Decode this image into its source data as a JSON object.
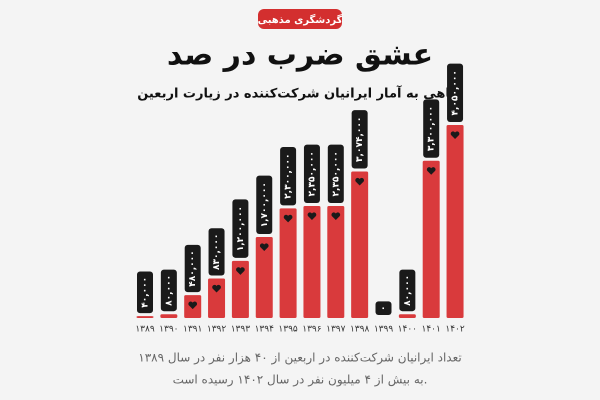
{
  "chart_data": {
    "type": "bar",
    "badge": "گردشگری مذهبی",
    "title": "عشق ضرب در صد",
    "subtitle": "نگاهی به آمار ایرانیان شرکت‌کننده در زیارت اربعین",
    "categories": [
      "۱۳۸۹",
      "۱۳۹۰",
      "۱۳۹۱",
      "۱۳۹۲",
      "۱۳۹۳",
      "۱۳۹۴",
      "۱۳۹۵",
      "۱۳۹۶",
      "۱۳۹۷",
      "۱۳۹۸",
      "۱۳۹۹",
      "۱۴۰۰",
      "۱۴۰۱",
      "۱۴۰۲"
    ],
    "values": [
      40000,
      80000,
      480000,
      830000,
      1200000,
      1700000,
      2300000,
      2350000,
      2350000,
      3074000,
      0,
      80000,
      3300000,
      4050000
    ],
    "value_labels": [
      "۴۰,۰۰۰",
      "۸۰,۰۰۰",
      "۴۸۰,۰۰۰",
      "۸۳۰,۰۰۰",
      "۱,۲۰۰,۰۰۰",
      "۱,۷۰۰,۰۰۰",
      "۲,۳۰۰,۰۰۰",
      "۲,۳۵۰,۰۰۰",
      "۲,۳۵۰,۰۰۰",
      "۳,۰۷۴,۰۰۰",
      "۰",
      "۸۰,۰۰۰",
      "۳,۳۰۰,۰۰۰",
      "۴,۰۵۰,۰۰۰"
    ],
    "color": "#d93a3c",
    "caption": [
      "تعداد ایرانیان شرکت‌کننده در اربعین از ۴۰ هزار نفر در سال ۱۳۸۹",
      "به بیش از ۴ میلیون نفر در سال ۱۴۰۲ رسیده است."
    ]
  }
}
